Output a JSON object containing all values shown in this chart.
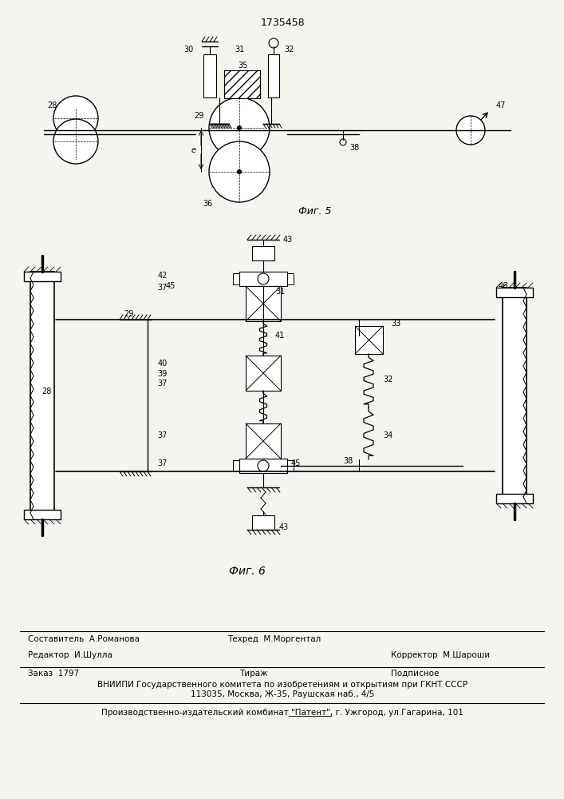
{
  "patent_number": "1735458",
  "fig5_label": "Фиг. 5",
  "fig6_label": "Фиг. 6",
  "bg_color": "#f5f5f0",
  "line_color": "#000000",
  "text_color": "#000000",
  "footer": {
    "editor_label": "Редактор  И.Шулла",
    "compiler_label": "Составитель  А.Романова",
    "techred_label": "Техред  М.Моргентал",
    "corrector_label": "Корректор  М.Шароши",
    "order_label": "Заказ  1797",
    "tirazh_label": "Тираж",
    "podpisnoe_label": "Подписное",
    "vnipi_line1": "ВНИИПИ Государственного комитета по изобретениям и открытиям при ГКНТ СССР",
    "vnipi_line2": "113035, Москва, Ж-35, Раушская наб., 4/5",
    "patent_line": "Производственно-издательский комбинат \"Патент\", г. Ужгород, ул.Гагарина, 101"
  }
}
